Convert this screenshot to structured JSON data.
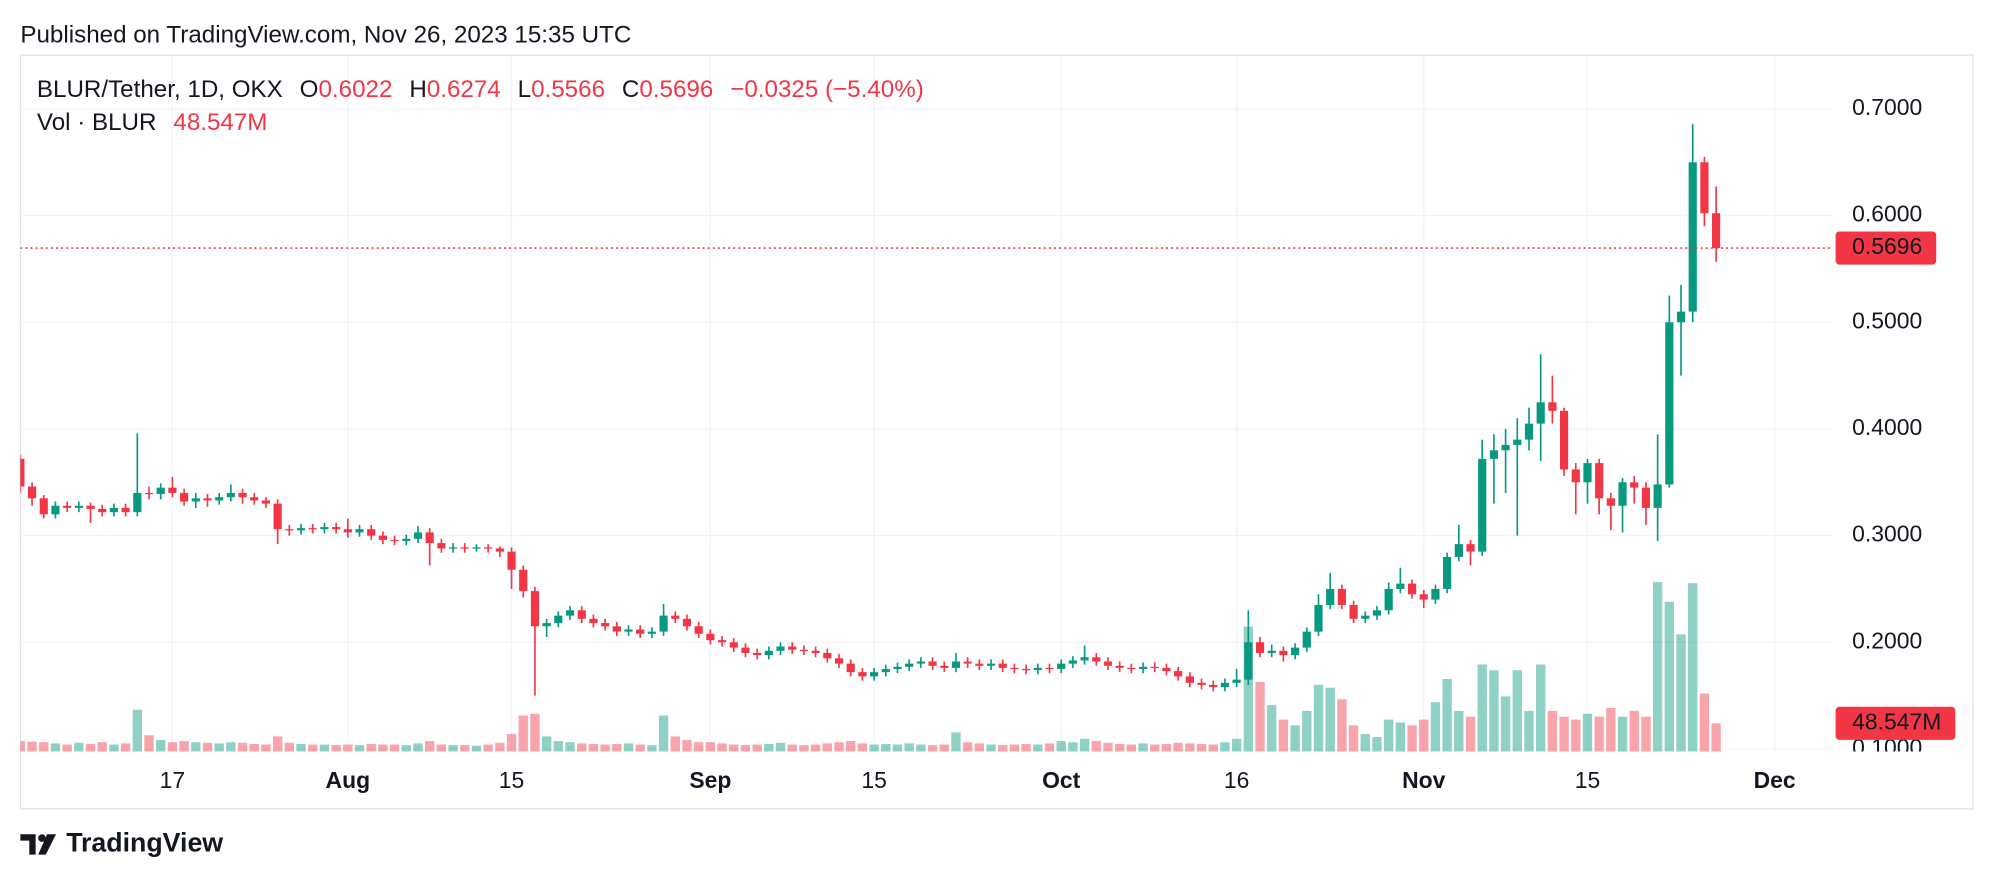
{
  "chart_data": {
    "type": "candlestick",
    "published": "Published on TradingView.com, Nov 26, 2023 15:35 UTC",
    "title": "BLUR/Tether, 1D, OKX",
    "ohlc_letters": [
      "O",
      "H",
      "L",
      "C"
    ],
    "change_label": "−0.0325 (−5.40%)",
    "footer": "TradingView",
    "up_color": "#089981",
    "down_color": "#f23645",
    "grid": true,
    "last_price_line": true,
    "x": [
      "2023-07-04",
      "2023-07-05",
      "2023-07-06",
      "2023-07-07",
      "2023-07-08",
      "2023-07-09",
      "2023-07-10",
      "2023-07-11",
      "2023-07-12",
      "2023-07-13",
      "2023-07-14",
      "2023-07-15",
      "2023-07-16",
      "2023-07-17",
      "2023-07-18",
      "2023-07-19",
      "2023-07-20",
      "2023-07-21",
      "2023-07-22",
      "2023-07-23",
      "2023-07-24",
      "2023-07-25",
      "2023-07-26",
      "2023-07-27",
      "2023-07-28",
      "2023-07-29",
      "2023-07-30",
      "2023-07-31",
      "2023-08-01",
      "2023-08-02",
      "2023-08-03",
      "2023-08-04",
      "2023-08-05",
      "2023-08-06",
      "2023-08-07",
      "2023-08-08",
      "2023-08-09",
      "2023-08-10",
      "2023-08-11",
      "2023-08-12",
      "2023-08-13",
      "2023-08-14",
      "2023-08-15",
      "2023-08-16",
      "2023-08-17",
      "2023-08-18",
      "2023-08-19",
      "2023-08-20",
      "2023-08-21",
      "2023-08-22",
      "2023-08-23",
      "2023-08-24",
      "2023-08-25",
      "2023-08-26",
      "2023-08-27",
      "2023-08-28",
      "2023-08-29",
      "2023-08-30",
      "2023-08-31",
      "2023-09-01",
      "2023-09-02",
      "2023-09-03",
      "2023-09-04",
      "2023-09-05",
      "2023-09-06",
      "2023-09-07",
      "2023-09-08",
      "2023-09-09",
      "2023-09-10",
      "2023-09-11",
      "2023-09-12",
      "2023-09-13",
      "2023-09-14",
      "2023-09-15",
      "2023-09-16",
      "2023-09-17",
      "2023-09-18",
      "2023-09-19",
      "2023-09-20",
      "2023-09-21",
      "2023-09-22",
      "2023-09-23",
      "2023-09-24",
      "2023-09-25",
      "2023-09-26",
      "2023-09-27",
      "2023-09-28",
      "2023-09-29",
      "2023-09-30",
      "2023-10-01",
      "2023-10-02",
      "2023-10-03",
      "2023-10-04",
      "2023-10-05",
      "2023-10-06",
      "2023-10-07",
      "2023-10-08",
      "2023-10-09",
      "2023-10-10",
      "2023-10-11",
      "2023-10-12",
      "2023-10-13",
      "2023-10-14",
      "2023-10-15",
      "2023-10-16",
      "2023-10-17",
      "2023-10-18",
      "2023-10-19",
      "2023-10-20",
      "2023-10-21",
      "2023-10-22",
      "2023-10-23",
      "2023-10-24",
      "2023-10-25",
      "2023-10-26",
      "2023-10-27",
      "2023-10-28",
      "2023-10-29",
      "2023-10-30",
      "2023-10-31",
      "2023-11-01",
      "2023-11-02",
      "2023-11-03",
      "2023-11-04",
      "2023-11-05",
      "2023-11-06",
      "2023-11-07",
      "2023-11-08",
      "2023-11-09",
      "2023-11-10",
      "2023-11-11",
      "2023-11-12",
      "2023-11-13",
      "2023-11-14",
      "2023-11-15",
      "2023-11-16",
      "2023-11-17",
      "2023-11-18",
      "2023-11-19",
      "2023-11-20",
      "2023-11-21",
      "2023-11-22",
      "2023-11-23",
      "2023-11-24",
      "2023-11-25",
      "2023-11-26"
    ],
    "open": [
      0.372,
      0.346,
      0.335,
      0.32,
      0.328,
      0.326,
      0.328,
      0.325,
      0.322,
      0.326,
      0.322,
      0.34,
      0.339,
      0.345,
      0.34,
      0.332,
      0.335,
      0.333,
      0.336,
      0.34,
      0.336,
      0.333,
      0.33,
      0.306,
      0.305,
      0.307,
      0.306,
      0.308,
      0.306,
      0.303,
      0.306,
      0.3,
      0.296,
      0.295,
      0.297,
      0.303,
      0.293,
      0.288,
      0.289,
      0.288,
      0.289,
      0.288,
      0.285,
      0.268,
      0.248,
      0.215,
      0.218,
      0.225,
      0.23,
      0.222,
      0.218,
      0.215,
      0.21,
      0.212,
      0.208,
      0.21,
      0.225,
      0.222,
      0.215,
      0.208,
      0.202,
      0.2,
      0.195,
      0.19,
      0.188,
      0.192,
      0.196,
      0.193,
      0.192,
      0.19,
      0.185,
      0.18,
      0.172,
      0.168,
      0.172,
      0.175,
      0.177,
      0.18,
      0.182,
      0.178,
      0.176,
      0.182,
      0.18,
      0.178,
      0.18,
      0.176,
      0.175,
      0.174,
      0.176,
      0.175,
      0.18,
      0.183,
      0.186,
      0.182,
      0.178,
      0.176,
      0.175,
      0.177,
      0.176,
      0.173,
      0.168,
      0.162,
      0.16,
      0.158,
      0.162,
      0.165,
      0.2,
      0.19,
      0.192,
      0.188,
      0.195,
      0.21,
      0.235,
      0.25,
      0.235,
      0.222,
      0.225,
      0.23,
      0.25,
      0.255,
      0.245,
      0.24,
      0.25,
      0.28,
      0.292,
      0.285,
      0.372,
      0.38,
      0.385,
      0.39,
      0.405,
      0.425,
      0.417,
      0.362,
      0.35,
      0.368,
      0.335,
      0.328,
      0.35,
      0.345,
      0.326,
      0.348,
      0.5,
      0.51,
      0.65,
      0.6022
    ],
    "high": [
      0.376,
      0.35,
      0.338,
      0.332,
      0.332,
      0.332,
      0.331,
      0.329,
      0.33,
      0.33,
      0.396,
      0.346,
      0.349,
      0.355,
      0.344,
      0.34,
      0.339,
      0.34,
      0.348,
      0.344,
      0.34,
      0.336,
      0.334,
      0.31,
      0.311,
      0.311,
      0.312,
      0.312,
      0.316,
      0.31,
      0.31,
      0.304,
      0.3,
      0.301,
      0.309,
      0.307,
      0.297,
      0.293,
      0.293,
      0.292,
      0.292,
      0.29,
      0.289,
      0.272,
      0.252,
      0.222,
      0.229,
      0.234,
      0.234,
      0.226,
      0.222,
      0.219,
      0.216,
      0.216,
      0.214,
      0.236,
      0.229,
      0.226,
      0.219,
      0.212,
      0.206,
      0.204,
      0.199,
      0.194,
      0.196,
      0.2,
      0.2,
      0.197,
      0.196,
      0.194,
      0.189,
      0.184,
      0.176,
      0.176,
      0.179,
      0.181,
      0.184,
      0.186,
      0.186,
      0.182,
      0.19,
      0.186,
      0.184,
      0.184,
      0.184,
      0.18,
      0.179,
      0.18,
      0.18,
      0.184,
      0.187,
      0.197,
      0.19,
      0.186,
      0.182,
      0.18,
      0.181,
      0.181,
      0.18,
      0.177,
      0.172,
      0.166,
      0.164,
      0.166,
      0.175,
      0.23,
      0.205,
      0.198,
      0.196,
      0.199,
      0.214,
      0.245,
      0.265,
      0.254,
      0.239,
      0.229,
      0.234,
      0.256,
      0.27,
      0.259,
      0.249,
      0.254,
      0.284,
      0.31,
      0.296,
      0.39,
      0.395,
      0.4,
      0.41,
      0.42,
      0.47,
      0.45,
      0.42,
      0.368,
      0.372,
      0.372,
      0.34,
      0.354,
      0.356,
      0.35,
      0.395,
      0.525,
      0.535,
      0.686,
      0.655,
      0.6274
    ],
    "low": [
      0.34,
      0.328,
      0.316,
      0.316,
      0.322,
      0.322,
      0.312,
      0.318,
      0.318,
      0.318,
      0.318,
      0.334,
      0.334,
      0.336,
      0.328,
      0.326,
      0.327,
      0.329,
      0.332,
      0.33,
      0.329,
      0.326,
      0.292,
      0.3,
      0.301,
      0.302,
      0.302,
      0.302,
      0.298,
      0.299,
      0.296,
      0.292,
      0.291,
      0.291,
      0.293,
      0.272,
      0.284,
      0.284,
      0.284,
      0.285,
      0.284,
      0.28,
      0.25,
      0.242,
      0.15,
      0.205,
      0.214,
      0.221,
      0.218,
      0.214,
      0.211,
      0.206,
      0.206,
      0.204,
      0.204,
      0.206,
      0.218,
      0.211,
      0.204,
      0.198,
      0.196,
      0.191,
      0.186,
      0.184,
      0.184,
      0.188,
      0.189,
      0.188,
      0.186,
      0.181,
      0.176,
      0.168,
      0.164,
      0.164,
      0.168,
      0.171,
      0.173,
      0.176,
      0.174,
      0.172,
      0.172,
      0.176,
      0.174,
      0.174,
      0.172,
      0.171,
      0.17,
      0.17,
      0.171,
      0.171,
      0.176,
      0.179,
      0.178,
      0.174,
      0.172,
      0.171,
      0.171,
      0.172,
      0.169,
      0.164,
      0.158,
      0.156,
      0.154,
      0.154,
      0.158,
      0.16,
      0.186,
      0.186,
      0.182,
      0.184,
      0.191,
      0.206,
      0.231,
      0.231,
      0.218,
      0.218,
      0.221,
      0.226,
      0.246,
      0.241,
      0.232,
      0.236,
      0.246,
      0.276,
      0.272,
      0.281,
      0.33,
      0.34,
      0.3,
      0.38,
      0.37,
      0.405,
      0.356,
      0.32,
      0.33,
      0.32,
      0.305,
      0.303,
      0.33,
      0.31,
      0.295,
      0.345,
      0.45,
      0.5,
      0.59,
      0.5566
    ],
    "close": [
      0.346,
      0.335,
      0.32,
      0.328,
      0.326,
      0.328,
      0.325,
      0.322,
      0.326,
      0.322,
      0.34,
      0.339,
      0.345,
      0.34,
      0.332,
      0.335,
      0.333,
      0.336,
      0.34,
      0.336,
      0.333,
      0.33,
      0.306,
      0.305,
      0.307,
      0.306,
      0.308,
      0.306,
      0.303,
      0.306,
      0.3,
      0.296,
      0.295,
      0.297,
      0.303,
      0.293,
      0.288,
      0.289,
      0.288,
      0.289,
      0.288,
      0.285,
      0.268,
      0.248,
      0.215,
      0.218,
      0.225,
      0.23,
      0.222,
      0.218,
      0.215,
      0.21,
      0.212,
      0.208,
      0.21,
      0.225,
      0.222,
      0.215,
      0.208,
      0.202,
      0.2,
      0.195,
      0.19,
      0.188,
      0.192,
      0.196,
      0.193,
      0.192,
      0.19,
      0.185,
      0.18,
      0.172,
      0.168,
      0.172,
      0.175,
      0.177,
      0.18,
      0.182,
      0.178,
      0.176,
      0.182,
      0.18,
      0.178,
      0.18,
      0.176,
      0.175,
      0.174,
      0.176,
      0.175,
      0.18,
      0.183,
      0.186,
      0.182,
      0.178,
      0.176,
      0.175,
      0.177,
      0.176,
      0.173,
      0.168,
      0.162,
      0.16,
      0.158,
      0.162,
      0.165,
      0.2,
      0.19,
      0.192,
      0.188,
      0.195,
      0.21,
      0.235,
      0.25,
      0.235,
      0.222,
      0.225,
      0.23,
      0.25,
      0.255,
      0.245,
      0.24,
      0.25,
      0.28,
      0.292,
      0.285,
      0.372,
      0.38,
      0.385,
      0.39,
      0.405,
      0.425,
      0.417,
      0.362,
      0.35,
      0.368,
      0.335,
      0.328,
      0.35,
      0.345,
      0.326,
      0.348,
      0.5,
      0.51,
      0.65,
      0.6022,
      0.5696
    ],
    "volume": {
      "name": "Vol · BLUR",
      "axis": "y2",
      "last_label": "48.547M",
      "values": [
        18,
        17,
        16,
        14,
        12,
        15,
        13,
        16,
        12,
        14,
        72,
        28,
        20,
        16,
        18,
        16,
        15,
        14,
        16,
        15,
        13,
        12,
        26,
        15,
        13,
        12,
        12,
        11,
        12,
        11,
        13,
        12,
        12,
        11,
        14,
        18,
        12,
        11,
        11,
        10,
        12,
        15,
        30,
        62,
        65,
        26,
        18,
        16,
        14,
        13,
        12,
        13,
        14,
        12,
        11,
        62,
        26,
        20,
        16,
        16,
        14,
        12,
        11,
        12,
        13,
        15,
        12,
        11,
        12,
        14,
        16,
        18,
        14,
        12,
        13,
        12,
        14,
        12,
        11,
        12,
        33,
        16,
        14,
        12,
        11,
        12,
        13,
        12,
        14,
        18,
        16,
        22,
        18,
        15,
        13,
        12,
        14,
        12,
        13,
        15,
        14,
        13,
        12,
        16,
        22,
        215,
        120,
        80,
        55,
        45,
        70,
        115,
        110,
        90,
        45,
        30,
        25,
        55,
        50,
        45,
        55,
        85,
        125,
        70,
        60,
        150,
        140,
        95,
        140,
        70,
        150,
        70,
        60,
        55,
        65,
        60,
        75,
        60,
        70,
        60,
        292,
        258,
        202,
        290,
        100,
        48.547
      ]
    },
    "xlim": [
      "2023-07-04",
      "2023-12-06"
    ],
    "xticks": [
      {
        "value": "2023-07-17",
        "label": "17"
      },
      {
        "value": "2023-08-01",
        "label": "Aug"
      },
      {
        "value": "2023-08-15",
        "label": "15"
      },
      {
        "value": "2023-09-01",
        "label": "Sep"
      },
      {
        "value": "2023-09-15",
        "label": "15"
      },
      {
        "value": "2023-10-01",
        "label": "Oct"
      },
      {
        "value": "2023-10-16",
        "label": "16"
      },
      {
        "value": "2023-11-01",
        "label": "Nov"
      },
      {
        "value": "2023-11-15",
        "label": "15"
      },
      {
        "value": "2023-12-01",
        "label": "Dec"
      }
    ],
    "ylim": [
      0.0976,
      0.7504
    ],
    "yticks": [
      {
        "value": 0.1,
        "label": "0.1000"
      },
      {
        "value": 0.2,
        "label": "0.2000"
      },
      {
        "value": 0.3,
        "label": "0.3000"
      },
      {
        "value": 0.4,
        "label": "0.4000"
      },
      {
        "value": 0.5,
        "label": "0.5000"
      },
      {
        "value": 0.6,
        "label": "0.6000"
      },
      {
        "value": 0.7,
        "label": "0.7000"
      }
    ],
    "y2lim": [
      0,
      1200
    ]
  }
}
